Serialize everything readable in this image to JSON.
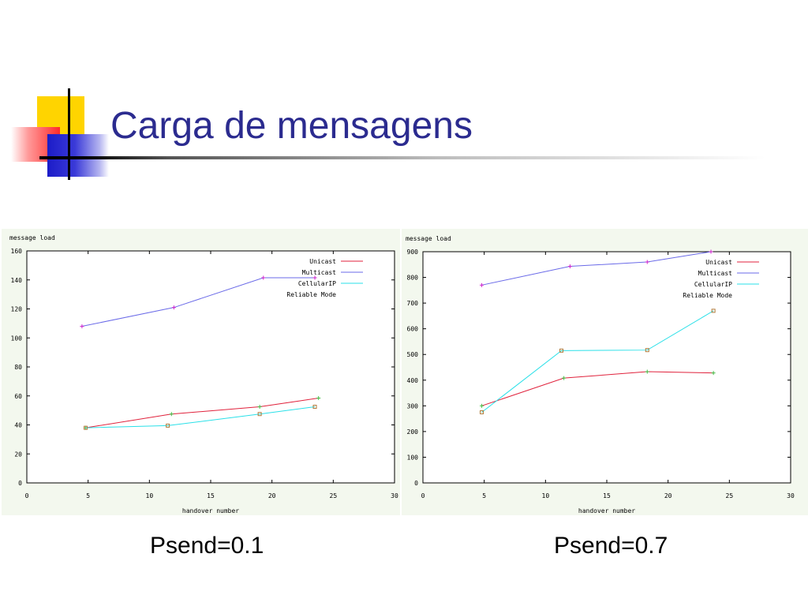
{
  "slide": {
    "title": "Carga de mensagens",
    "captions": [
      "Psend=0.1",
      "Psend=0.7"
    ]
  },
  "chart_data": [
    {
      "type": "line",
      "ylabel": "message load",
      "xlabel": "handover number",
      "xlim": [
        0,
        30
      ],
      "ylim": [
        0,
        160
      ],
      "xticks": [
        0,
        5,
        10,
        15,
        20,
        25,
        30
      ],
      "yticks": [
        0,
        20,
        40,
        60,
        80,
        100,
        120,
        140,
        160
      ],
      "grid": false,
      "legend_position": "top-right",
      "legend_entries": [
        "Unicast",
        "Multicast",
        "CellularIP",
        "Reliable Mode"
      ],
      "series": [
        {
          "name": "Unicast",
          "color": "#e0223c",
          "marker": "plus",
          "marker_color": "#44bb44",
          "x": [
            4.8,
            11.8,
            19,
            23.8
          ],
          "y": [
            38,
            47.5,
            52.5,
            58.5
          ]
        },
        {
          "name": "Multicast",
          "color": "#6a6ae8",
          "marker": "plus",
          "marker_color": "#cc22cc",
          "x": [
            4.5,
            12,
            19.3,
            23.5
          ],
          "y": [
            108,
            121,
            141.5,
            141.5
          ]
        },
        {
          "name": "CellularIP",
          "color": "#2ae0e8",
          "marker": "square",
          "marker_color": "#b07a3a",
          "x": [
            4.8,
            11.5,
            19,
            23.5
          ],
          "y": [
            38,
            39.5,
            47.5,
            52.5
          ]
        }
      ]
    },
    {
      "type": "line",
      "ylabel": "message load",
      "xlabel": "handover number",
      "xlim": [
        0,
        30
      ],
      "ylim": [
        0,
        900
      ],
      "xticks": [
        0,
        5,
        10,
        15,
        20,
        25,
        30
      ],
      "yticks": [
        0,
        100,
        200,
        300,
        400,
        500,
        600,
        700,
        800,
        900
      ],
      "grid": false,
      "legend_position": "top-right",
      "legend_entries": [
        "Unicast",
        "Multicast",
        "CellularIP",
        "Reliable Mode"
      ],
      "series": [
        {
          "name": "Unicast",
          "color": "#e0223c",
          "marker": "plus",
          "marker_color": "#44bb44",
          "x": [
            4.8,
            11.5,
            18.3,
            23.7
          ],
          "y": [
            300,
            408,
            433,
            428
          ]
        },
        {
          "name": "Multicast",
          "color": "#6a6ae8",
          "marker": "plus",
          "marker_color": "#cc22cc",
          "x": [
            4.8,
            12,
            18.3,
            23.5
          ],
          "y": [
            770,
            843,
            860,
            900
          ]
        },
        {
          "name": "CellularIP",
          "color": "#2ae0e8",
          "marker": "square",
          "marker_color": "#b07a3a",
          "x": [
            4.8,
            11.3,
            18.3,
            23.7
          ],
          "y": [
            275,
            515,
            517,
            670
          ]
        }
      ]
    }
  ]
}
